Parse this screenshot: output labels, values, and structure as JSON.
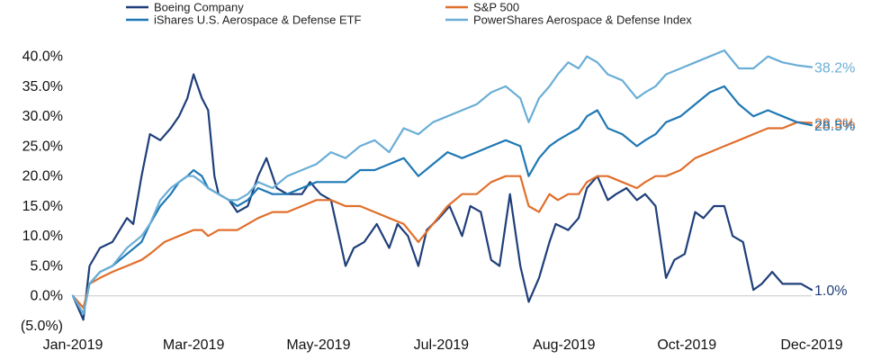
{
  "chart_data": {
    "type": "line",
    "title": "",
    "xlabel": "",
    "ylabel": "",
    "ylim": [
      -5,
      41
    ],
    "y_ticks": [
      -5,
      0,
      5,
      10,
      15,
      20,
      25,
      30,
      35,
      40
    ],
    "y_tick_labels": [
      "(5.0%)",
      "0.0%",
      "5.0%",
      "10.0%",
      "15.0%",
      "20.0%",
      "25.0%",
      "30.0%",
      "35.0%",
      "40.0%"
    ],
    "x_ticks": [
      "2019-01-02",
      "2019-03-01",
      "2019-04-30",
      "2019-06-28",
      "2019-08-26",
      "2019-10-24",
      "2019-12-23"
    ],
    "x_tick_labels": [
      "Jan-2019",
      "Mar-2019",
      "May-2019",
      "Jul-2019",
      "Aug-2019",
      "Oct-2019",
      "Dec-2019"
    ],
    "xlim": [
      "2019-01-02",
      "2019-12-23"
    ],
    "legend_position": "top",
    "grid": false,
    "series": [
      {
        "name": "Boeing Company",
        "color": "#1f3f7a",
        "end_label": "1.0%",
        "points": [
          [
            "2019-01-02",
            0
          ],
          [
            "2019-01-07",
            -4
          ],
          [
            "2019-01-10",
            5
          ],
          [
            "2019-01-15",
            8
          ],
          [
            "2019-01-21",
            9
          ],
          [
            "2019-01-28",
            13
          ],
          [
            "2019-01-31",
            12
          ],
          [
            "2019-02-04",
            20
          ],
          [
            "2019-02-08",
            27
          ],
          [
            "2019-02-13",
            26
          ],
          [
            "2019-02-18",
            28
          ],
          [
            "2019-02-22",
            30
          ],
          [
            "2019-02-26",
            33
          ],
          [
            "2019-03-01",
            37
          ],
          [
            "2019-03-05",
            33
          ],
          [
            "2019-03-08",
            31
          ],
          [
            "2019-03-11",
            20
          ],
          [
            "2019-03-13",
            17
          ],
          [
            "2019-03-18",
            16
          ],
          [
            "2019-03-22",
            14
          ],
          [
            "2019-03-27",
            15
          ],
          [
            "2019-04-01",
            20
          ],
          [
            "2019-04-05",
            23
          ],
          [
            "2019-04-10",
            18
          ],
          [
            "2019-04-15",
            17
          ],
          [
            "2019-04-22",
            17
          ],
          [
            "2019-04-26",
            19
          ],
          [
            "2019-05-01",
            17
          ],
          [
            "2019-05-06",
            16
          ],
          [
            "2019-05-13",
            5
          ],
          [
            "2019-05-17",
            8
          ],
          [
            "2019-05-22",
            9
          ],
          [
            "2019-05-28",
            12
          ],
          [
            "2019-06-03",
            8
          ],
          [
            "2019-06-07",
            12
          ],
          [
            "2019-06-12",
            10
          ],
          [
            "2019-06-17",
            5
          ],
          [
            "2019-06-21",
            11
          ],
          [
            "2019-06-27",
            13
          ],
          [
            "2019-07-02",
            15
          ],
          [
            "2019-07-08",
            10
          ],
          [
            "2019-07-12",
            15
          ],
          [
            "2019-07-17",
            14
          ],
          [
            "2019-07-22",
            6
          ],
          [
            "2019-07-26",
            5
          ],
          [
            "2019-07-31",
            17
          ],
          [
            "2019-08-05",
            5
          ],
          [
            "2019-08-09",
            -1
          ],
          [
            "2019-08-14",
            3
          ],
          [
            "2019-08-19",
            9
          ],
          [
            "2019-08-22",
            12
          ],
          [
            "2019-08-28",
            11
          ],
          [
            "2019-09-02",
            13
          ],
          [
            "2019-09-06",
            18
          ],
          [
            "2019-09-11",
            20
          ],
          [
            "2019-09-16",
            16
          ],
          [
            "2019-09-20",
            17
          ],
          [
            "2019-09-25",
            18
          ],
          [
            "2019-09-30",
            16
          ],
          [
            "2019-10-04",
            17
          ],
          [
            "2019-10-09",
            15
          ],
          [
            "2019-10-14",
            3
          ],
          [
            "2019-10-18",
            6
          ],
          [
            "2019-10-23",
            7
          ],
          [
            "2019-10-28",
            14
          ],
          [
            "2019-11-01",
            13
          ],
          [
            "2019-11-06",
            15
          ],
          [
            "2019-11-11",
            15
          ],
          [
            "2019-11-15",
            10
          ],
          [
            "2019-11-20",
            9
          ],
          [
            "2019-11-25",
            1
          ],
          [
            "2019-11-29",
            2
          ],
          [
            "2019-12-04",
            4
          ],
          [
            "2019-12-09",
            2
          ],
          [
            "2019-12-13",
            2
          ],
          [
            "2019-12-18",
            2
          ],
          [
            "2019-12-23",
            1
          ]
        ]
      },
      {
        "name": "S&P 500",
        "color": "#e06f2c",
        "end_label": "28.9%",
        "points": [
          [
            "2019-01-02",
            0
          ],
          [
            "2019-01-07",
            -2
          ],
          [
            "2019-01-10",
            2
          ],
          [
            "2019-01-15",
            3
          ],
          [
            "2019-01-21",
            4
          ],
          [
            "2019-01-28",
            5
          ],
          [
            "2019-02-04",
            6
          ],
          [
            "2019-02-08",
            7
          ],
          [
            "2019-02-15",
            9
          ],
          [
            "2019-02-22",
            10
          ],
          [
            "2019-03-01",
            11
          ],
          [
            "2019-03-05",
            11
          ],
          [
            "2019-03-08",
            10
          ],
          [
            "2019-03-13",
            11
          ],
          [
            "2019-03-18",
            11
          ],
          [
            "2019-03-22",
            11
          ],
          [
            "2019-03-27",
            12
          ],
          [
            "2019-04-01",
            13
          ],
          [
            "2019-04-08",
            14
          ],
          [
            "2019-04-15",
            14
          ],
          [
            "2019-04-22",
            15
          ],
          [
            "2019-04-29",
            16
          ],
          [
            "2019-05-06",
            16
          ],
          [
            "2019-05-13",
            15
          ],
          [
            "2019-05-20",
            15
          ],
          [
            "2019-05-27",
            14
          ],
          [
            "2019-06-03",
            13
          ],
          [
            "2019-06-10",
            12
          ],
          [
            "2019-06-17",
            9
          ],
          [
            "2019-06-24",
            12
          ],
          [
            "2019-07-01",
            15
          ],
          [
            "2019-07-08",
            17
          ],
          [
            "2019-07-15",
            17
          ],
          [
            "2019-07-22",
            19
          ],
          [
            "2019-07-29",
            20
          ],
          [
            "2019-08-05",
            20
          ],
          [
            "2019-08-09",
            15
          ],
          [
            "2019-08-14",
            14
          ],
          [
            "2019-08-19",
            17
          ],
          [
            "2019-08-23",
            16
          ],
          [
            "2019-08-28",
            17
          ],
          [
            "2019-09-02",
            17
          ],
          [
            "2019-09-06",
            19
          ],
          [
            "2019-09-11",
            20
          ],
          [
            "2019-09-16",
            20
          ],
          [
            "2019-09-23",
            19
          ],
          [
            "2019-09-30",
            18
          ],
          [
            "2019-10-04",
            19
          ],
          [
            "2019-10-09",
            20
          ],
          [
            "2019-10-14",
            20
          ],
          [
            "2019-10-21",
            21
          ],
          [
            "2019-10-28",
            23
          ],
          [
            "2019-11-04",
            24
          ],
          [
            "2019-11-11",
            25
          ],
          [
            "2019-11-18",
            26
          ],
          [
            "2019-11-25",
            27
          ],
          [
            "2019-12-02",
            28
          ],
          [
            "2019-12-09",
            28
          ],
          [
            "2019-12-16",
            29
          ],
          [
            "2019-12-23",
            28.9
          ]
        ]
      },
      {
        "name": "iShares U.S. Aerospace & Defense ETF",
        "color": "#1f78b4",
        "end_label": "28.5%",
        "points": [
          [
            "2019-01-02",
            0
          ],
          [
            "2019-01-07",
            -3
          ],
          [
            "2019-01-10",
            2
          ],
          [
            "2019-01-15",
            4
          ],
          [
            "2019-01-21",
            5
          ],
          [
            "2019-01-28",
            7
          ],
          [
            "2019-02-04",
            9
          ],
          [
            "2019-02-08",
            12
          ],
          [
            "2019-02-13",
            15
          ],
          [
            "2019-02-18",
            17
          ],
          [
            "2019-02-22",
            19
          ],
          [
            "2019-02-26",
            20
          ],
          [
            "2019-03-01",
            21
          ],
          [
            "2019-03-05",
            20
          ],
          [
            "2019-03-08",
            18
          ],
          [
            "2019-03-13",
            17
          ],
          [
            "2019-03-18",
            16
          ],
          [
            "2019-03-22",
            15
          ],
          [
            "2019-03-27",
            16
          ],
          [
            "2019-04-01",
            18
          ],
          [
            "2019-04-08",
            17
          ],
          [
            "2019-04-15",
            17
          ],
          [
            "2019-04-22",
            18
          ],
          [
            "2019-04-29",
            19
          ],
          [
            "2019-05-06",
            19
          ],
          [
            "2019-05-13",
            19
          ],
          [
            "2019-05-20",
            21
          ],
          [
            "2019-05-27",
            21
          ],
          [
            "2019-06-03",
            22
          ],
          [
            "2019-06-10",
            23
          ],
          [
            "2019-06-17",
            20
          ],
          [
            "2019-06-24",
            22
          ],
          [
            "2019-07-01",
            24
          ],
          [
            "2019-07-08",
            23
          ],
          [
            "2019-07-15",
            24
          ],
          [
            "2019-07-22",
            25
          ],
          [
            "2019-07-29",
            26
          ],
          [
            "2019-08-05",
            25
          ],
          [
            "2019-08-09",
            20
          ],
          [
            "2019-08-14",
            23
          ],
          [
            "2019-08-19",
            25
          ],
          [
            "2019-08-23",
            26
          ],
          [
            "2019-08-28",
            27
          ],
          [
            "2019-09-02",
            28
          ],
          [
            "2019-09-06",
            30
          ],
          [
            "2019-09-11",
            31
          ],
          [
            "2019-09-16",
            28
          ],
          [
            "2019-09-23",
            27
          ],
          [
            "2019-09-30",
            25
          ],
          [
            "2019-10-04",
            26
          ],
          [
            "2019-10-09",
            27
          ],
          [
            "2019-10-14",
            29
          ],
          [
            "2019-10-21",
            30
          ],
          [
            "2019-10-28",
            32
          ],
          [
            "2019-11-04",
            34
          ],
          [
            "2019-11-11",
            35
          ],
          [
            "2019-11-18",
            32
          ],
          [
            "2019-11-25",
            30
          ],
          [
            "2019-12-02",
            31
          ],
          [
            "2019-12-09",
            30
          ],
          [
            "2019-12-16",
            29
          ],
          [
            "2019-12-23",
            28.5
          ]
        ]
      },
      {
        "name": "PowerShares Aerospace & Defense Index",
        "color": "#6aaed6",
        "end_label": "38.2%",
        "points": [
          [
            "2019-01-02",
            0
          ],
          [
            "2019-01-07",
            -3
          ],
          [
            "2019-01-10",
            2
          ],
          [
            "2019-01-15",
            4
          ],
          [
            "2019-01-21",
            5
          ],
          [
            "2019-01-28",
            8
          ],
          [
            "2019-02-04",
            10
          ],
          [
            "2019-02-08",
            12
          ],
          [
            "2019-02-13",
            16
          ],
          [
            "2019-02-18",
            18
          ],
          [
            "2019-02-22",
            19
          ],
          [
            "2019-02-26",
            20
          ],
          [
            "2019-03-01",
            20
          ],
          [
            "2019-03-05",
            19
          ],
          [
            "2019-03-08",
            18
          ],
          [
            "2019-03-13",
            17
          ],
          [
            "2019-03-18",
            16
          ],
          [
            "2019-03-22",
            16
          ],
          [
            "2019-03-27",
            17
          ],
          [
            "2019-04-01",
            19
          ],
          [
            "2019-04-08",
            18
          ],
          [
            "2019-04-15",
            20
          ],
          [
            "2019-04-22",
            21
          ],
          [
            "2019-04-29",
            22
          ],
          [
            "2019-05-06",
            24
          ],
          [
            "2019-05-13",
            23
          ],
          [
            "2019-05-20",
            25
          ],
          [
            "2019-05-27",
            26
          ],
          [
            "2019-06-03",
            24
          ],
          [
            "2019-06-10",
            28
          ],
          [
            "2019-06-17",
            27
          ],
          [
            "2019-06-24",
            29
          ],
          [
            "2019-07-01",
            30
          ],
          [
            "2019-07-08",
            31
          ],
          [
            "2019-07-15",
            32
          ],
          [
            "2019-07-22",
            34
          ],
          [
            "2019-07-29",
            35
          ],
          [
            "2019-08-05",
            33
          ],
          [
            "2019-08-09",
            29
          ],
          [
            "2019-08-14",
            33
          ],
          [
            "2019-08-19",
            35
          ],
          [
            "2019-08-23",
            37
          ],
          [
            "2019-08-28",
            39
          ],
          [
            "2019-09-02",
            38
          ],
          [
            "2019-09-06",
            40
          ],
          [
            "2019-09-11",
            39
          ],
          [
            "2019-09-16",
            37
          ],
          [
            "2019-09-23",
            36
          ],
          [
            "2019-09-30",
            33
          ],
          [
            "2019-10-04",
            34
          ],
          [
            "2019-10-09",
            35
          ],
          [
            "2019-10-14",
            37
          ],
          [
            "2019-10-21",
            38
          ],
          [
            "2019-10-28",
            39
          ],
          [
            "2019-11-04",
            40
          ],
          [
            "2019-11-11",
            41
          ],
          [
            "2019-11-18",
            38
          ],
          [
            "2019-11-25",
            38
          ],
          [
            "2019-12-02",
            40
          ],
          [
            "2019-12-09",
            39
          ],
          [
            "2019-12-16",
            38.5
          ],
          [
            "2019-12-23",
            38.2
          ]
        ]
      }
    ]
  }
}
